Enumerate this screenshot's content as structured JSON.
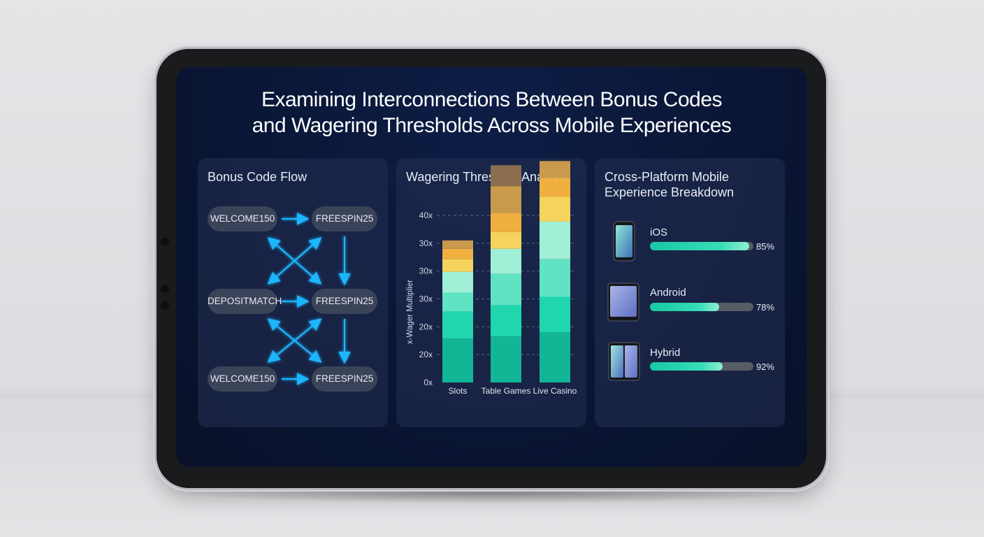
{
  "title": {
    "line1": "Examining Interconnections Between Bonus Codes",
    "line2": "and Wagering Thresholds Across Mobile Experiences"
  },
  "flow_panel": {
    "heading": "Bonus Code Flow",
    "nodes": {
      "r1_left": "WELCOME150",
      "r1_right": "FREESPIN25",
      "r2_left": "DEPOSITMATCH",
      "r2_right": "FREESPIN25",
      "r3_left": "WELCOME150",
      "r3_right": "FREESPIN25"
    },
    "arrow_color": "#1fb6ff"
  },
  "wagering_panel": {
    "heading": "Wagering Threshold Analysis"
  },
  "chart_data": {
    "type": "bar",
    "stacked": true,
    "title": "Wagering Threshold Analysis",
    "ylabel": "x-Wager Multiplier",
    "xlabel": "",
    "categories": [
      "Slots",
      "Table Games",
      "Live Casino"
    ],
    "ytick_labels": [
      "0x",
      "20x",
      "20x",
      "30x",
      "30x",
      "30x",
      "40x"
    ],
    "ylim": [
      0,
      40
    ],
    "grid": true,
    "segment_colors": [
      "#12b596",
      "#1fd6ae",
      "#5fe3c2",
      "#9ff0d6",
      "#f6d35c",
      "#f0b040",
      "#c99a4c",
      "#8a6e4e"
    ],
    "stack_totals": [
      34,
      47,
      43
    ],
    "segments": [
      [
        10.5,
        6.5,
        4.5,
        5,
        3,
        2.5,
        2
      ],
      [
        11,
        7.5,
        7.5,
        6,
        4,
        4.5,
        6.5,
        5
      ],
      [
        12,
        8.5,
        9,
        9,
        6,
        4.5,
        4
      ]
    ]
  },
  "platform_panel": {
    "heading_line1": "Cross-Platform Mobile",
    "heading_line2": "Experience Breakdown",
    "items": [
      {
        "label": "iOS",
        "percent_text": "85%",
        "fill": 0.96,
        "icon": "phone-icon"
      },
      {
        "label": "Android",
        "percent_text": "78%",
        "fill": 0.67,
        "icon": "tablet-icon"
      },
      {
        "label": "Hybrid",
        "percent_text": "92%",
        "fill": 0.7,
        "icon": "dual-device-icon"
      }
    ]
  }
}
